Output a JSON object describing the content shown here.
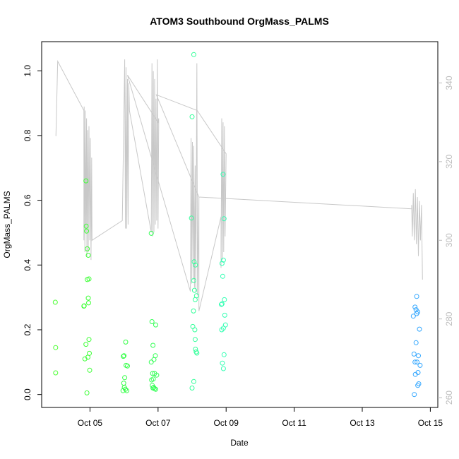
{
  "chart_data": {
    "type": "scatter",
    "title": "ATOM3 Southbound OrgMass_PALMS",
    "xlabel": "Date",
    "ylabel": "OrgMass_PALMS",
    "x_unit": "days (October)",
    "xlim": [
      3.58,
      15.22
    ],
    "ylim": [
      -0.04,
      1.09
    ],
    "y2lim": [
      257.5,
      350.5
    ],
    "x_ticks": [
      {
        "value": 5,
        "label": "Oct 05"
      },
      {
        "value": 7,
        "label": "Oct 07"
      },
      {
        "value": 9,
        "label": "Oct 09"
      },
      {
        "value": 11,
        "label": "Oct 11"
      },
      {
        "value": 13,
        "label": "Oct 13"
      },
      {
        "value": 15,
        "label": "Oct 15"
      }
    ],
    "y_ticks": [
      {
        "value": 0.0,
        "label": "0.0"
      },
      {
        "value": 0.2,
        "label": "0.2"
      },
      {
        "value": 0.4,
        "label": "0.4"
      },
      {
        "value": 0.6,
        "label": "0.6"
      },
      {
        "value": 0.8,
        "label": "0.8"
      },
      {
        "value": 1.0,
        "label": "1.0"
      }
    ],
    "y2_ticks": [
      {
        "value": 260,
        "label": "260"
      },
      {
        "value": 280,
        "label": "280"
      },
      {
        "value": 300,
        "label": "300"
      },
      {
        "value": 320,
        "label": "320"
      },
      {
        "value": 340,
        "label": "340"
      }
    ],
    "colors": {
      "line": "#c8c8c8",
      "right_axis": "#bdbdbd"
    },
    "series": [
      {
        "type": "line",
        "axis": "right",
        "points": [
          [
            4.0,
            326.5
          ],
          [
            4.05,
            345.5
          ],
          [
            4.82,
            333
          ],
          [
            4.82,
            300
          ],
          [
            4.83,
            334
          ],
          [
            4.85,
            297
          ],
          [
            4.86,
            333
          ],
          [
            4.88,
            302
          ],
          [
            4.9,
            331
          ],
          [
            4.91,
            296
          ],
          [
            4.93,
            328
          ],
          [
            4.95,
            297
          ],
          [
            4.97,
            329
          ],
          [
            4.99,
            300
          ],
          [
            5.01,
            326
          ],
          [
            5.03,
            295
          ],
          [
            5.05,
            321
          ],
          [
            5.06,
            300
          ],
          [
            5.95,
            305
          ],
          [
            6.02,
            346
          ],
          [
            6.04,
            303
          ],
          [
            6.06,
            344
          ],
          [
            6.08,
            303
          ],
          [
            6.1,
            341
          ],
          [
            6.12,
            304
          ],
          [
            6.14,
            340
          ],
          [
            6.16,
            333
          ],
          [
            6.8,
            302
          ],
          [
            6.82,
            345
          ],
          [
            6.84,
            301
          ],
          [
            6.86,
            343
          ],
          [
            6.88,
            302
          ],
          [
            6.9,
            341
          ],
          [
            6.92,
            304
          ],
          [
            6.94,
            336
          ],
          [
            6.96,
            305
          ],
          [
            6.98,
            346
          ],
          [
            7.0,
            303
          ],
          [
            7.02,
            331
          ],
          [
            7.0,
            330
          ],
          [
            6.1,
            342
          ],
          [
            7.95,
            287
          ],
          [
            7.97,
            326
          ],
          [
            7.99,
            289
          ],
          [
            8.01,
            325
          ],
          [
            8.03,
            290
          ],
          [
            8.05,
            324
          ],
          [
            8.07,
            288
          ],
          [
            8.09,
            319
          ],
          [
            8.11,
            287
          ],
          [
            8.14,
            345
          ],
          [
            8.16,
            286
          ],
          [
            8.2,
            311
          ],
          [
            8.2,
            282
          ],
          [
            8.85,
            306
          ],
          [
            8.85,
            293
          ],
          [
            8.87,
            331
          ],
          [
            8.89,
            295
          ],
          [
            8.91,
            330
          ],
          [
            8.93,
            297
          ],
          [
            8.95,
            329
          ],
          [
            8.97,
            301
          ],
          [
            9.0,
            322
          ],
          [
            8.15,
            333
          ],
          [
            6.95,
            337
          ],
          [
            8.2,
            311
          ],
          [
            14.45,
            308
          ],
          [
            14.45,
            309
          ],
          [
            14.47,
            301
          ],
          [
            14.5,
            312
          ],
          [
            14.53,
            300
          ],
          [
            14.56,
            313
          ],
          [
            14.59,
            299
          ],
          [
            14.62,
            311
          ],
          [
            14.65,
            296
          ],
          [
            14.68,
            310
          ],
          [
            14.71,
            300
          ],
          [
            14.74,
            309
          ],
          [
            14.77,
            290
          ]
        ]
      },
      {
        "type": "scatter",
        "axis": "left",
        "points": [
          [
            3.98,
            0.285,
            "#4cff33"
          ],
          [
            3.99,
            0.145,
            "#4cff33"
          ],
          [
            3.99,
            0.067,
            "#4cff33"
          ],
          [
            4.82,
            0.273,
            "#3dff36"
          ],
          [
            4.83,
            0.274,
            "#3dff36"
          ],
          [
            4.88,
            0.155,
            "#3dff36"
          ],
          [
            4.85,
            0.11,
            "#3dff36"
          ],
          [
            4.88,
            0.66,
            "#3dff36"
          ],
          [
            4.89,
            0.52,
            "#3dff36"
          ],
          [
            4.9,
            0.505,
            "#3dff36"
          ],
          [
            4.92,
            0.45,
            "#3dff36"
          ],
          [
            4.95,
            0.43,
            "#3dff36"
          ],
          [
            4.92,
            0.355,
            "#3dff36"
          ],
          [
            4.97,
            0.357,
            "#3dff36"
          ],
          [
            4.95,
            0.298,
            "#3dff36"
          ],
          [
            4.96,
            0.283,
            "#3dff36"
          ],
          [
            4.97,
            0.17,
            "#3dff36"
          ],
          [
            4.94,
            0.115,
            "#3dff36"
          ],
          [
            4.98,
            0.127,
            "#3dff36"
          ],
          [
            4.99,
            0.075,
            "#3dff36"
          ],
          [
            4.91,
            0.005,
            "#3dff36"
          ],
          [
            5.98,
            0.118,
            "#33ff46"
          ],
          [
            6.0,
            0.12,
            "#33ff46"
          ],
          [
            6.02,
            0.052,
            "#33ff46"
          ],
          [
            5.99,
            0.035,
            "#33ff46"
          ],
          [
            5.97,
            0.012,
            "#33ff46"
          ],
          [
            6.04,
            0.016,
            "#33ff46"
          ],
          [
            6.05,
            0.162,
            "#33ff46"
          ],
          [
            6.06,
            0.09,
            "#33ff46"
          ],
          [
            6.1,
            0.088,
            "#33ff46"
          ],
          [
            6.08,
            0.012,
            "#33ff46"
          ],
          [
            6.01,
            0.022,
            "#33ff46"
          ],
          [
            6.8,
            0.498,
            "#33ff55"
          ],
          [
            6.82,
            0.225,
            "#33ff55"
          ],
          [
            6.85,
            0.152,
            "#33ff55"
          ],
          [
            6.93,
            0.215,
            "#33ff55"
          ],
          [
            6.8,
            0.1,
            "#33ff55"
          ],
          [
            6.88,
            0.108,
            "#33ff55"
          ],
          [
            6.92,
            0.12,
            "#33ff55"
          ],
          [
            6.84,
            0.065,
            "#33ff55"
          ],
          [
            6.9,
            0.065,
            "#33ff55"
          ],
          [
            6.96,
            0.06,
            "#33ff55"
          ],
          [
            6.86,
            0.048,
            "#33ff55"
          ],
          [
            6.81,
            0.045,
            "#33ff55"
          ],
          [
            6.83,
            0.028,
            "#33ff55"
          ],
          [
            6.87,
            0.022,
            "#33ff55"
          ],
          [
            6.9,
            0.018,
            "#33ff55"
          ],
          [
            6.93,
            0.016,
            "#33ff55"
          ],
          [
            6.85,
            0.02,
            "#33ff55"
          ],
          [
            8.05,
            1.05,
            "#33ff9a"
          ],
          [
            8.0,
            0.858,
            "#33ff9a"
          ],
          [
            7.98,
            0.545,
            "#33ff9a"
          ],
          [
            8.06,
            0.41,
            "#33ff9a"
          ],
          [
            8.1,
            0.4,
            "#33ff9a"
          ],
          [
            8.05,
            0.352,
            "#33ff9a"
          ],
          [
            8.07,
            0.322,
            "#33ff9a"
          ],
          [
            8.13,
            0.305,
            "#33ff9a"
          ],
          [
            8.09,
            0.293,
            "#33ff9a"
          ],
          [
            8.04,
            0.258,
            "#33ff9a"
          ],
          [
            8.02,
            0.21,
            "#33ff9a"
          ],
          [
            8.08,
            0.2,
            "#33ff9a"
          ],
          [
            8.09,
            0.17,
            "#33ff9a"
          ],
          [
            8.1,
            0.14,
            "#33ff9a"
          ],
          [
            8.12,
            0.132,
            "#33ff9a"
          ],
          [
            8.14,
            0.128,
            "#33ff9a"
          ],
          [
            8.05,
            0.04,
            "#33ff9a"
          ],
          [
            8.0,
            0.02,
            "#33ff9a"
          ],
          [
            8.91,
            0.68,
            "#33ffb3"
          ],
          [
            8.94,
            0.543,
            "#33ffb3"
          ],
          [
            8.92,
            0.415,
            "#33ffb3"
          ],
          [
            8.88,
            0.405,
            "#33ffb3"
          ],
          [
            8.9,
            0.365,
            "#33ffb3"
          ],
          [
            8.95,
            0.293,
            "#33ffb3"
          ],
          [
            8.88,
            0.28,
            "#33ffb3"
          ],
          [
            8.86,
            0.278,
            "#33ffb3"
          ],
          [
            8.96,
            0.245,
            "#33ffb3"
          ],
          [
            8.98,
            0.215,
            "#33ffb3"
          ],
          [
            8.92,
            0.205,
            "#33ffb3"
          ],
          [
            8.87,
            0.2,
            "#33ffb3"
          ],
          [
            8.94,
            0.123,
            "#33ffb3"
          ],
          [
            8.89,
            0.097,
            "#33ffb3"
          ],
          [
            8.92,
            0.08,
            "#33ffb3"
          ],
          [
            14.6,
            0.303,
            "#33a7ff"
          ],
          [
            14.55,
            0.27,
            "#33a7ff"
          ],
          [
            14.58,
            0.262,
            "#33a7ff"
          ],
          [
            14.63,
            0.255,
            "#33a7ff"
          ],
          [
            14.5,
            0.242,
            "#33a7ff"
          ],
          [
            14.6,
            0.25,
            "#33a7ff"
          ],
          [
            14.68,
            0.202,
            "#33a7ff"
          ],
          [
            14.58,
            0.16,
            "#33a7ff"
          ],
          [
            14.52,
            0.125,
            "#33a7ff"
          ],
          [
            14.65,
            0.12,
            "#33a7ff"
          ],
          [
            14.55,
            0.1,
            "#33a7ff"
          ],
          [
            14.61,
            0.1,
            "#33a7ff"
          ],
          [
            14.7,
            0.09,
            "#33a7ff"
          ],
          [
            14.64,
            0.068,
            "#33a7ff"
          ],
          [
            14.56,
            0.062,
            "#33a7ff"
          ],
          [
            14.66,
            0.033,
            "#33a7ff"
          ],
          [
            14.63,
            0.028,
            "#33a7ff"
          ],
          [
            14.53,
            0.0,
            "#33a7ff"
          ]
        ]
      }
    ]
  }
}
